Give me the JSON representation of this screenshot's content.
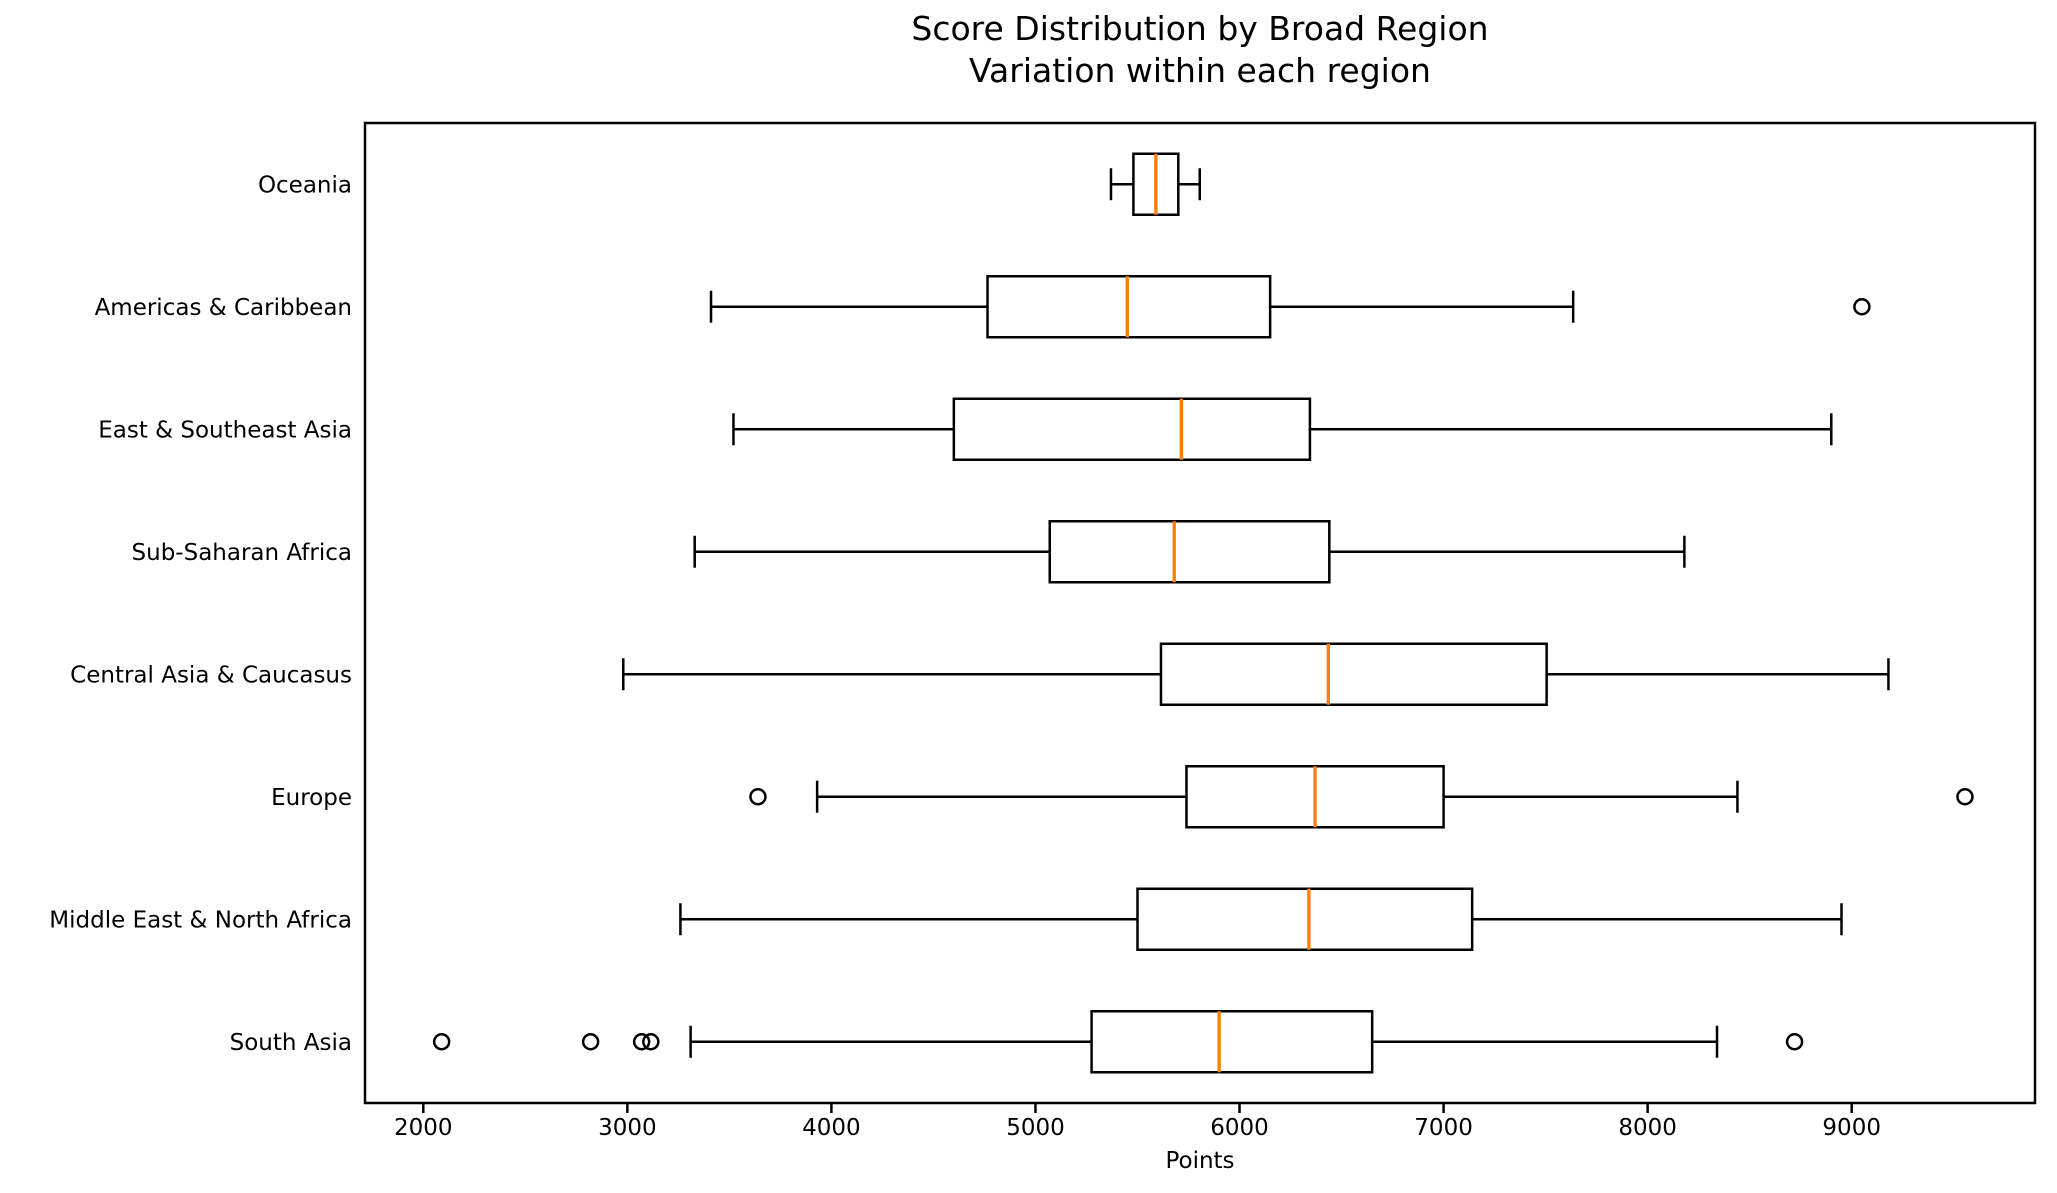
{
  "title": {
    "line1": "Score Distribution by Broad Region",
    "line2": "Variation within each region"
  },
  "chart_data": {
    "type": "boxplot",
    "orientation": "horizontal",
    "title": "Score Distribution by Broad Region",
    "subtitle": "Variation within each region",
    "xlabel": "Points",
    "ylabel": "",
    "xlim": [
      1714,
      9898
    ],
    "x_ticks": [
      2000,
      3000,
      4000,
      5000,
      6000,
      7000,
      8000,
      9000
    ],
    "grid": false,
    "colors": {
      "box_stroke": "#000000",
      "median": "#ff7f0e",
      "background": "#ffffff"
    },
    "rows": [
      {
        "label": "Oceania",
        "whisker_low": 5370,
        "q1": 5480,
        "median": 5590,
        "q3": 5700,
        "whisker_high": 5805,
        "outliers": []
      },
      {
        "label": "Americas & Caribbean",
        "whisker_low": 3410,
        "q1": 4765,
        "median": 5450,
        "q3": 6150,
        "whisker_high": 7635,
        "outliers": [
          9050
        ]
      },
      {
        "label": "East & Southeast Asia",
        "whisker_low": 3520,
        "q1": 4600,
        "median": 5715,
        "q3": 6345,
        "whisker_high": 8900,
        "outliers": []
      },
      {
        "label": "Sub-Saharan Africa",
        "whisker_low": 3330,
        "q1": 5070,
        "median": 5680,
        "q3": 6440,
        "whisker_high": 8180,
        "outliers": []
      },
      {
        "label": "Central Asia & Caucasus",
        "whisker_low": 2980,
        "q1": 5615,
        "median": 6435,
        "q3": 7505,
        "whisker_high": 9180,
        "outliers": []
      },
      {
        "label": "Europe",
        "whisker_low": 3930,
        "q1": 5740,
        "median": 6370,
        "q3": 7000,
        "whisker_high": 8440,
        "outliers": [
          3640,
          9555
        ]
      },
      {
        "label": "Middle East & North Africa",
        "whisker_low": 3260,
        "q1": 5500,
        "median": 6340,
        "q3": 7140,
        "whisker_high": 8950,
        "outliers": []
      },
      {
        "label": "South Asia",
        "whisker_low": 3310,
        "q1": 5275,
        "median": 5900,
        "q3": 6650,
        "whisker_high": 8340,
        "outliers": [
          2090,
          2820,
          3070,
          3115,
          8720
        ]
      }
    ]
  }
}
